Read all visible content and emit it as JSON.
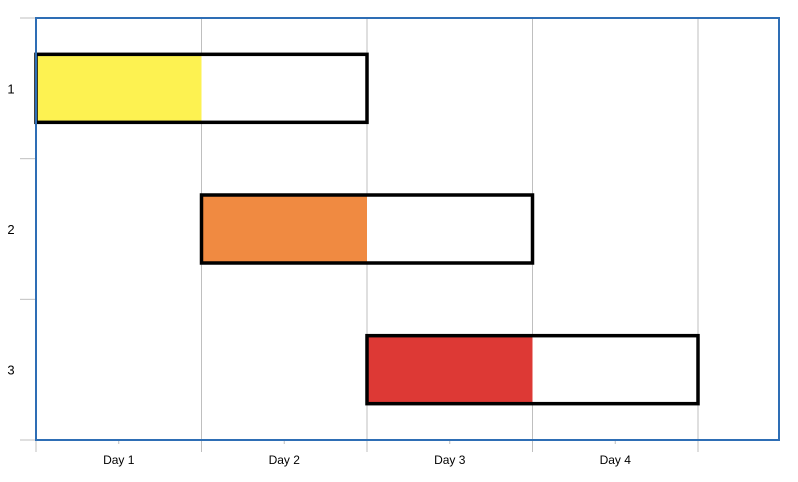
{
  "chart_data": {
    "type": "bar",
    "subtype": "gantt",
    "title": "",
    "xlabel": "",
    "ylabel": "",
    "x_categories": [
      "Day 1",
      "Day 2",
      "Day 3",
      "Day 4"
    ],
    "xlim": [
      0,
      5
    ],
    "ylim": [
      0,
      3
    ],
    "grid": "vertical",
    "y_ticks": [
      "1",
      "2",
      "3"
    ],
    "rows": [
      {
        "label": "1",
        "start": 0,
        "end": 2,
        "progress_end": 1,
        "color": "#FDF251"
      },
      {
        "label": "2",
        "start": 1,
        "end": 3,
        "progress_end": 2,
        "color": "#F08A41"
      },
      {
        "label": "3",
        "start": 2,
        "end": 4,
        "progress_end": 3,
        "color": "#DD3935"
      }
    ],
    "colors": {
      "frame": "#2E6EB5",
      "grid": "#BFBFBF",
      "bar_outline": "#000000",
      "bar_remaining": "#FFFFFF"
    }
  }
}
